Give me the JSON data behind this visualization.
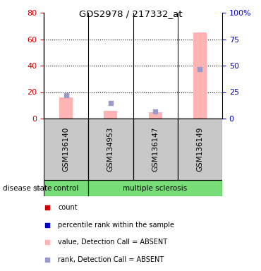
{
  "title": "GDS2978 / 217332_at",
  "samples": [
    "GSM136140",
    "GSM134953",
    "GSM136147",
    "GSM136149"
  ],
  "groups": [
    "control",
    "multiple sclerosis",
    "multiple sclerosis",
    "multiple sclerosis"
  ],
  "bar_values_pink": [
    16,
    6,
    5,
    65
  ],
  "rank_squares_blue_raw": [
    22,
    15,
    7,
    47
  ],
  "ylim_left": [
    0,
    80
  ],
  "ylim_right": [
    0,
    100
  ],
  "yticks_left": [
    0,
    20,
    40,
    60,
    80
  ],
  "yticks_right": [
    0,
    25,
    50,
    75,
    100
  ],
  "ytick_labels_right": [
    "0",
    "25",
    "50",
    "75",
    "100%"
  ],
  "left_tick_color": "#cc0000",
  "right_tick_color": "#0000cc",
  "pink_bar_color": "#ffb3b3",
  "blue_square_color": "#9999cc",
  "green_color": "#77dd77",
  "gray_color": "#c8c8c8",
  "legend_items": [
    {
      "color": "#cc0000",
      "label": "count"
    },
    {
      "color": "#0000cc",
      "label": "percentile rank within the sample"
    },
    {
      "color": "#ffb3b3",
      "label": "value, Detection Call = ABSENT"
    },
    {
      "color": "#9999cc",
      "label": "rank, Detection Call = ABSENT"
    }
  ],
  "disease_state_label": "disease state",
  "group_label_control": "control",
  "group_label_ms": "multiple sclerosis",
  "bar_width": 0.3
}
